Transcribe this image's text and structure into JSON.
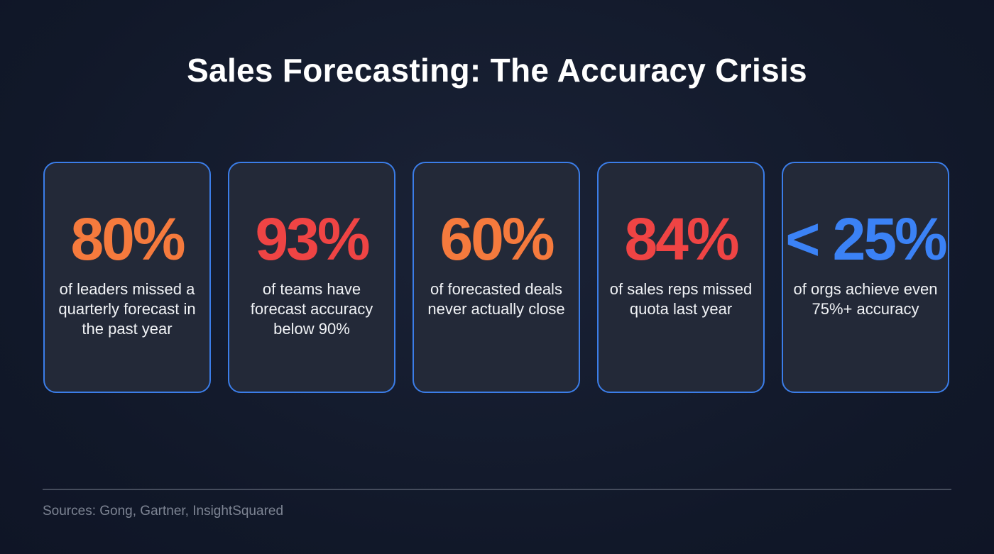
{
  "title": "Sales Forecasting: The Accuracy Crisis",
  "colors": {
    "orange": "#f57a3d",
    "red": "#ef4444",
    "blue": "#3b82f6",
    "card_border": "#3b7de8",
    "background": "#131a2c"
  },
  "cards": [
    {
      "stat": "80%",
      "description": "of leaders missed a quarterly forecast in the past year",
      "color": "#f57a3d"
    },
    {
      "stat": "93%",
      "description": "of teams have forecast accuracy below 90%",
      "color": "#ef4444"
    },
    {
      "stat": "60%",
      "description": "of forecasted deals never actually close",
      "color": "#f57a3d"
    },
    {
      "stat": "84%",
      "description": "of sales reps missed quota last year",
      "color": "#ef4444"
    },
    {
      "stat": "< 25%",
      "description": "of orgs achieve even 75%+ accuracy",
      "color": "#3b82f6"
    }
  ],
  "footer": {
    "sources": "Sources: Gong, Gartner, InsightSquared"
  }
}
